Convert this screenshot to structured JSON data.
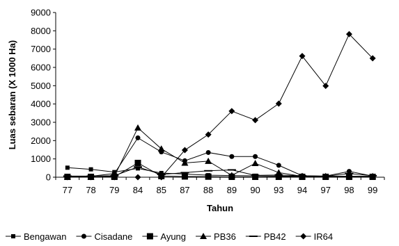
{
  "chart_data": {
    "type": "line",
    "title": "",
    "xlabel": "Tahun",
    "ylabel": "Luas sebaran (X 1000 Ha)",
    "categories": [
      "77",
      "78",
      "79",
      "84",
      "85",
      "87",
      "88",
      "89",
      "90",
      "93",
      "94",
      "97",
      "98",
      "99"
    ],
    "ylim": [
      0,
      9000
    ],
    "yticks": [
      0,
      1000,
      2000,
      3000,
      4000,
      5000,
      6000,
      7000,
      8000,
      9000
    ],
    "grid": false,
    "legend_position": "bottom",
    "series": [
      {
        "name": "Bengawan",
        "marker": "square-small",
        "values": [
          520,
          430,
          280,
          480,
          230,
          170,
          110,
          90,
          80,
          60,
          50,
          40,
          30,
          20
        ]
      },
      {
        "name": "Cisadane",
        "marker": "circle",
        "values": [
          50,
          50,
          200,
          2150,
          1380,
          900,
          1350,
          1130,
          1130,
          650,
          80,
          60,
          320,
          60
        ]
      },
      {
        "name": "Ayung",
        "marker": "square-large",
        "values": [
          20,
          20,
          20,
          780,
          60,
          40,
          30,
          20,
          20,
          20,
          20,
          20,
          20,
          20
        ]
      },
      {
        "name": "PB36",
        "marker": "triangle",
        "values": [
          10,
          10,
          50,
          2700,
          1550,
          780,
          880,
          100,
          760,
          250,
          50,
          50,
          50,
          50
        ]
      },
      {
        "name": "PB42",
        "marker": "dash",
        "values": [
          60,
          60,
          80,
          560,
          150,
          250,
          350,
          400,
          100,
          120,
          80,
          50,
          200,
          80
        ]
      },
      {
        "name": "IR64",
        "marker": "diamond",
        "values": [
          0,
          0,
          0,
          0,
          0,
          1480,
          2330,
          3610,
          3120,
          4020,
          6620,
          4990,
          7820,
          6500
        ]
      }
    ]
  }
}
